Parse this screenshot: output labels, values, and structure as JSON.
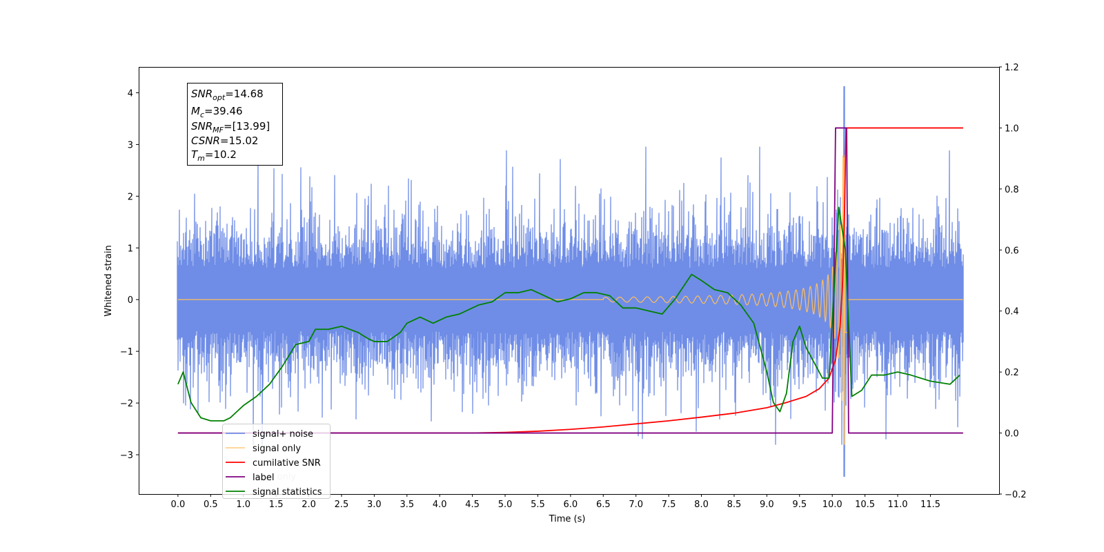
{
  "chart_data": {
    "type": "line",
    "xlabel": "Time (s)",
    "ylabel": "Whitened strain",
    "xlim": [
      -0.6,
      12.55
    ],
    "ylim": [
      -3.76,
      4.5
    ],
    "y2lim": [
      -0.2,
      1.2
    ],
    "x_ticks": [
      0.0,
      0.5,
      1.0,
      1.5,
      2.0,
      2.5,
      3.0,
      3.5,
      4.0,
      4.5,
      5.0,
      5.5,
      6.0,
      6.5,
      7.0,
      7.5,
      8.0,
      8.5,
      9.0,
      9.5,
      10.0,
      10.5,
      11.0,
      11.5
    ],
    "x_tick_labels": [
      "0.0",
      "0.5",
      "1.0",
      "1.5",
      "2.0",
      "2.5",
      "3.0",
      "3.5",
      "4.0",
      "4.5",
      "5.0",
      "5.5",
      "6.0",
      "6.5",
      "7.0",
      "7.5",
      "8.0",
      "8.5",
      "9.0",
      "9.5",
      "10.0",
      "10.5",
      "11.0",
      "11.5"
    ],
    "y_ticks": [
      4,
      3,
      2,
      1,
      0,
      -1,
      -2,
      -3
    ],
    "y_tick_labels": [
      "4",
      "3",
      "2",
      "1",
      "0",
      "−1",
      "−2",
      "−3"
    ],
    "y2_ticks": [
      1.2,
      1.0,
      0.8,
      0.6,
      0.4,
      0.2,
      0.0,
      -0.2
    ],
    "y2_tick_labels": [
      "1.2",
      "1.0",
      "0.8",
      "0.6",
      "0.4",
      "0.2",
      "0.0",
      "−0.2"
    ],
    "annotation_lines": [
      {
        "sym": "SNR",
        "sub": "opt",
        "val": "=14.68"
      },
      {
        "sym": "M",
        "sub": "c",
        "val": "=39.46"
      },
      {
        "sym": "SNR",
        "sub": "MF",
        "val": "=[13.99]"
      },
      {
        "sym": "CSNR",
        "sub": "",
        "val": "=15.02"
      },
      {
        "sym": "T",
        "sub": "m",
        "val": "=10.2"
      }
    ],
    "legend": [
      {
        "label": "signal+ noise",
        "color": "#6f8de6"
      },
      {
        "label": "signal only",
        "color": "#ffbf5e"
      },
      {
        "label": "cumilative SNR",
        "color": "#ff0000"
      },
      {
        "label": "label",
        "color": "#800080"
      },
      {
        "label": "signal statistics",
        "color": "#008000"
      }
    ],
    "legend_placement": "lower-left",
    "ghost_legend": [
      "label only",
      "signal statistics"
    ],
    "series": [
      {
        "name": "signal+ noise",
        "axis": "left",
        "color": "#6f8de6",
        "x_range": [
          0.0,
          12.0
        ],
        "amplitude_envelope": [
          -2.8,
          2.95
        ],
        "peak": {
          "x": 10.18,
          "y": 4.12
        },
        "trough": {
          "x": 10.18,
          "y": -3.42
        }
      },
      {
        "name": "signal only",
        "axis": "left",
        "color": "#ffbf5e",
        "x_range": [
          0.0,
          12.0
        ],
        "chirp_start": 6.5,
        "merger": 10.2,
        "peak": {
          "x": 10.18,
          "y": 2.75
        },
        "trough": {
          "x": 10.18,
          "y": -2.8
        }
      },
      {
        "name": "cumilative SNR",
        "axis": "right",
        "x": [
          0,
          4.5,
          5.0,
          5.5,
          6.0,
          6.5,
          7.0,
          7.5,
          8.0,
          8.5,
          9.0,
          9.3,
          9.6,
          9.8,
          9.95,
          10.05,
          10.12,
          10.16,
          10.19,
          10.21,
          12.0
        ],
        "y": [
          0,
          0,
          0.002,
          0.006,
          0.012,
          0.02,
          0.03,
          0.04,
          0.052,
          0.065,
          0.083,
          0.1,
          0.12,
          0.145,
          0.18,
          0.24,
          0.35,
          0.5,
          0.75,
          1.0,
          1.0
        ]
      },
      {
        "name": "label",
        "axis": "right",
        "x": [
          0,
          10.0,
          10.05,
          10.22,
          10.25,
          12.0
        ],
        "y": [
          0,
          0,
          1.0,
          1.0,
          0,
          0
        ]
      },
      {
        "name": "signal statistics",
        "axis": "right",
        "x": [
          0,
          0.08,
          0.2,
          0.35,
          0.5,
          0.7,
          0.8,
          0.9,
          1.0,
          1.2,
          1.4,
          1.6,
          1.8,
          2.0,
          2.1,
          2.3,
          2.5,
          2.75,
          2.9,
          3.0,
          3.2,
          3.4,
          3.5,
          3.7,
          3.9,
          4.1,
          4.3,
          4.6,
          4.8,
          5.0,
          5.2,
          5.4,
          5.6,
          5.8,
          6.0,
          6.2,
          6.4,
          6.6,
          6.8,
          7.0,
          7.2,
          7.4,
          7.6,
          7.85,
          8.0,
          8.2,
          8.4,
          8.6,
          8.8,
          9.0,
          9.1,
          9.2,
          9.3,
          9.4,
          9.5,
          9.6,
          9.7,
          9.85,
          9.95,
          10.1,
          10.2,
          10.3,
          10.45,
          10.6,
          10.8,
          11.0,
          11.2,
          11.5,
          11.8,
          11.95
        ],
        "y": [
          0.16,
          0.2,
          0.1,
          0.05,
          0.04,
          0.04,
          0.05,
          0.07,
          0.09,
          0.12,
          0.16,
          0.22,
          0.29,
          0.3,
          0.34,
          0.34,
          0.35,
          0.33,
          0.31,
          0.3,
          0.3,
          0.33,
          0.36,
          0.38,
          0.36,
          0.38,
          0.39,
          0.42,
          0.43,
          0.46,
          0.46,
          0.47,
          0.45,
          0.43,
          0.44,
          0.46,
          0.46,
          0.45,
          0.41,
          0.41,
          0.4,
          0.39,
          0.44,
          0.52,
          0.5,
          0.47,
          0.46,
          0.42,
          0.36,
          0.2,
          0.1,
          0.07,
          0.13,
          0.3,
          0.35,
          0.28,
          0.24,
          0.18,
          0.18,
          0.74,
          0.6,
          0.12,
          0.14,
          0.19,
          0.19,
          0.2,
          0.19,
          0.17,
          0.16,
          0.19
        ]
      }
    ]
  }
}
